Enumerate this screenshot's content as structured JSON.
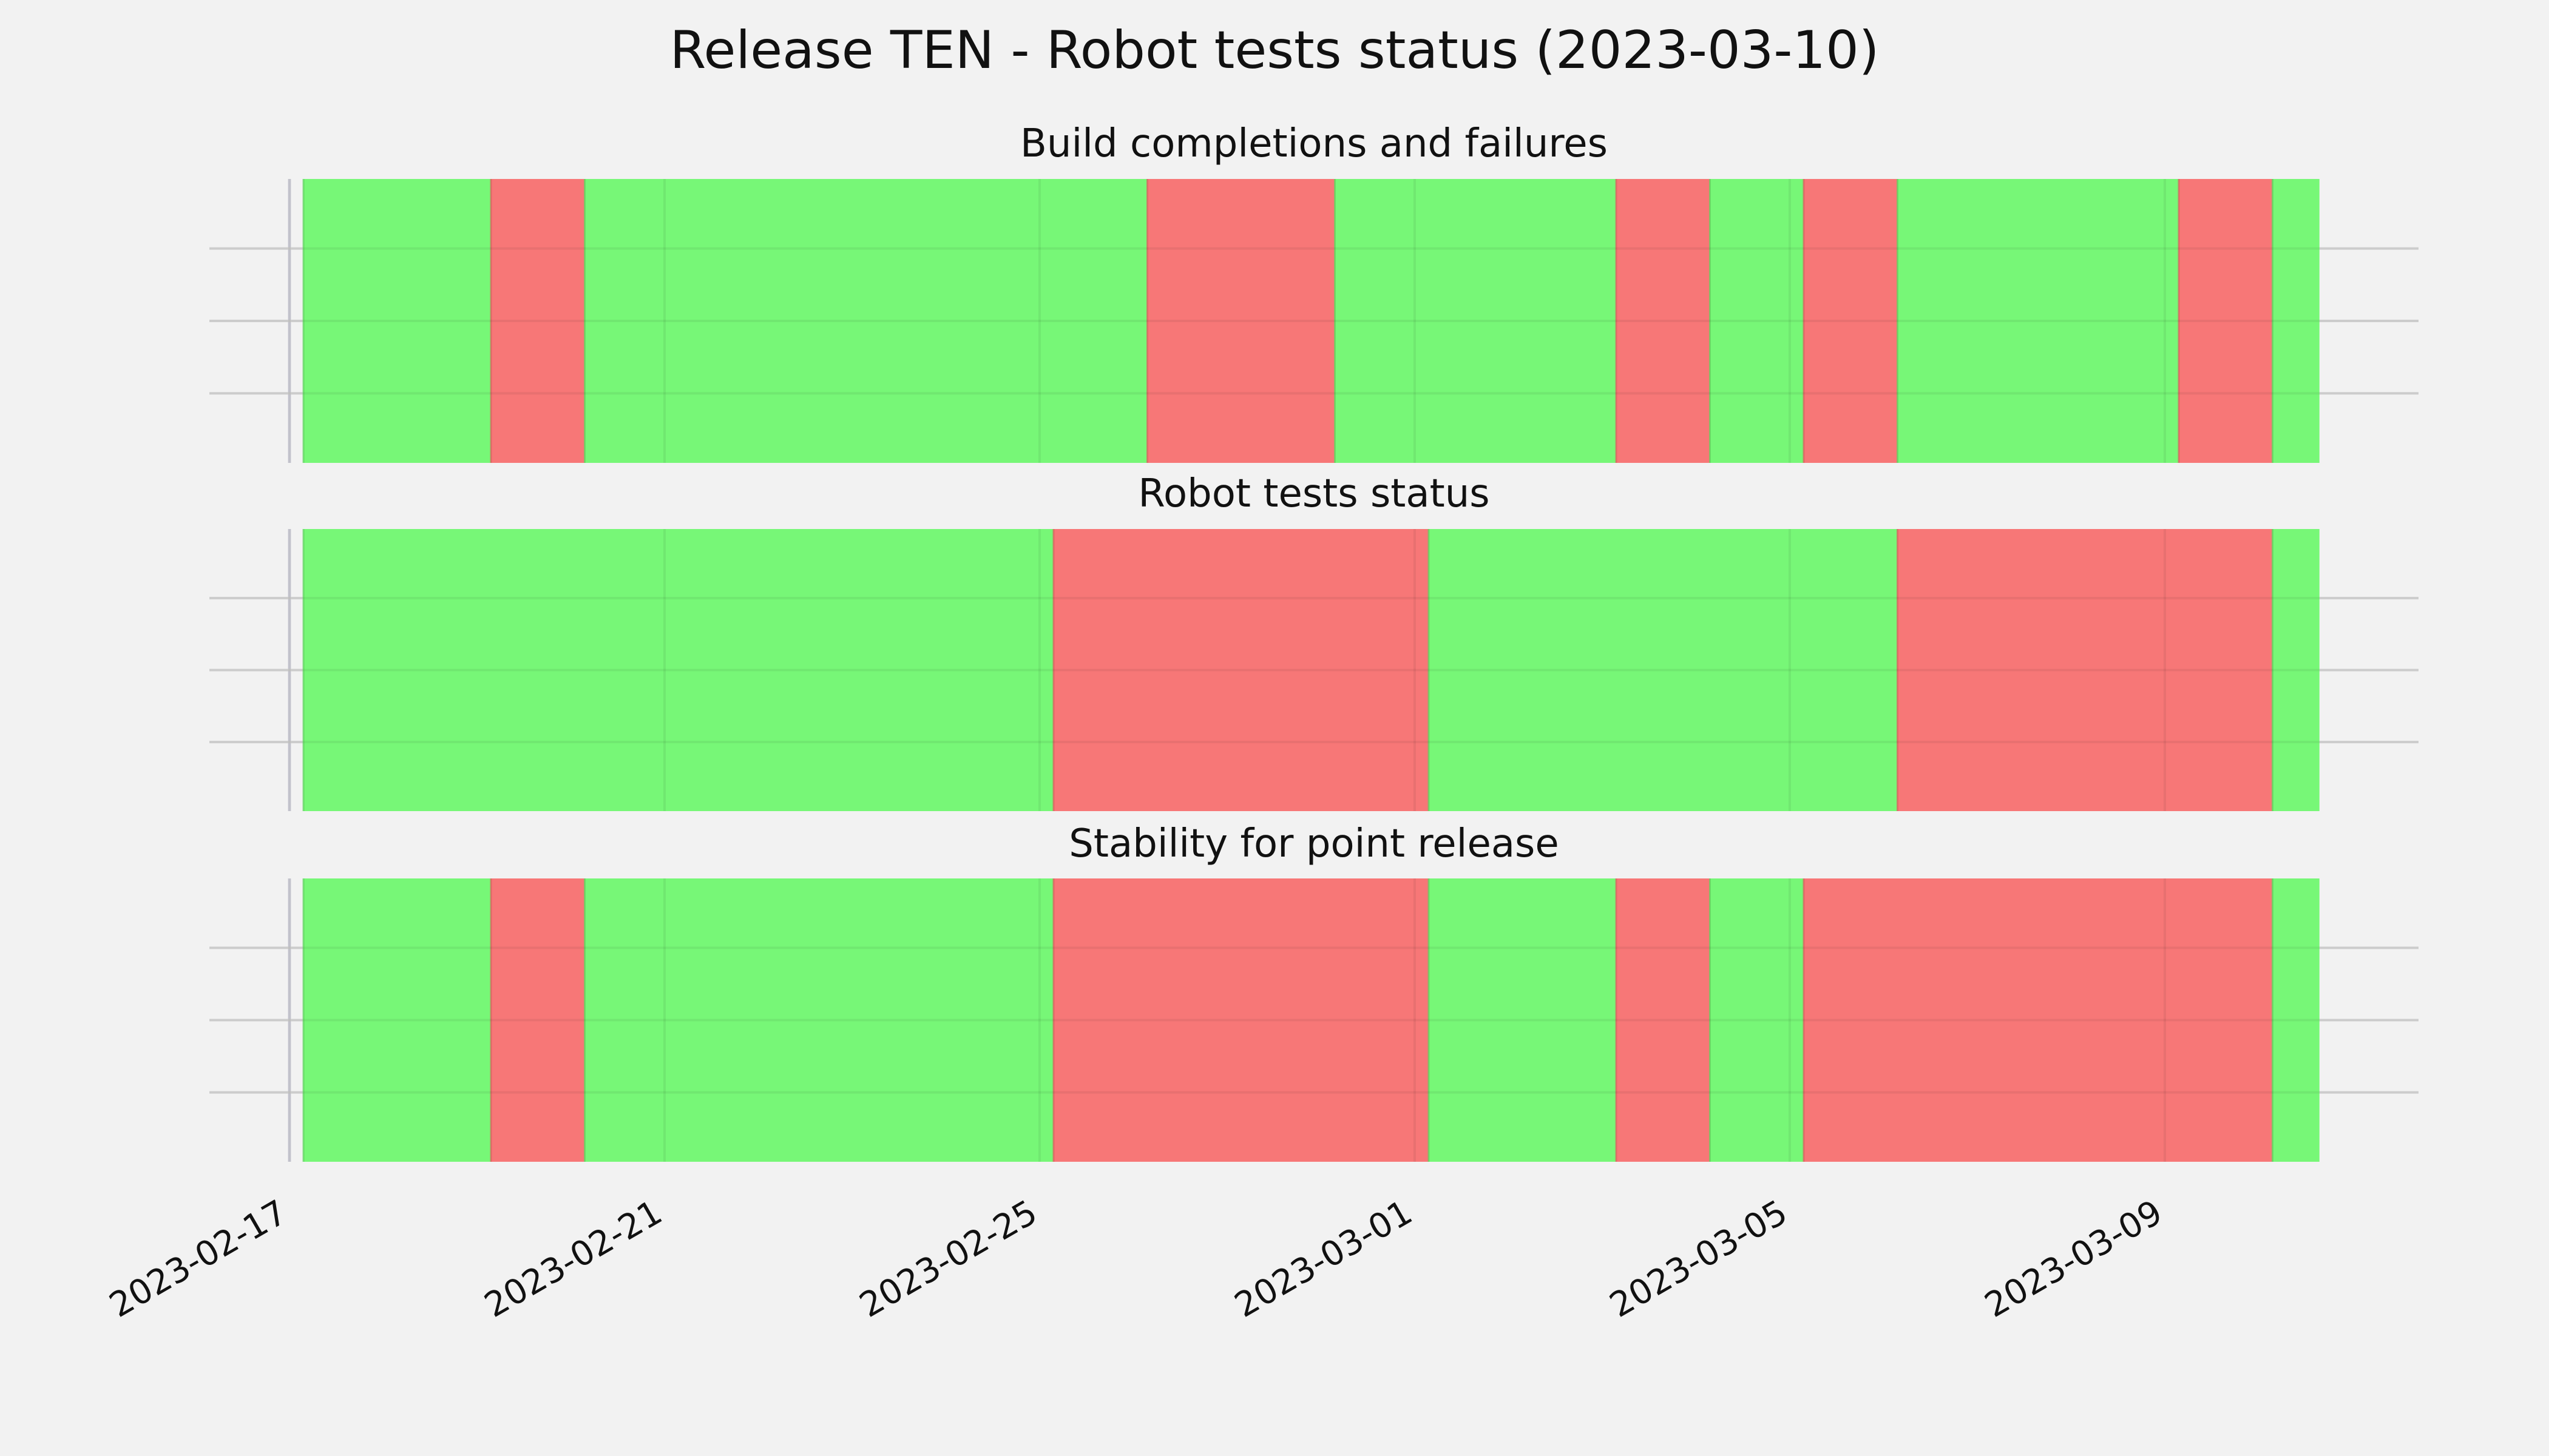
{
  "chart_data": {
    "type": "timeline",
    "title": "Release TEN - Robot tests status (2023-03-10)",
    "x_start": "2023-02-17",
    "x_range": [
      "2023-02-16T20:00",
      "2023-03-12T02:00"
    ],
    "x_ticks": [
      "2023-02-17",
      "2023-02-21",
      "2023-02-25",
      "2023-03-01",
      "2023-03-05",
      "2023-03-09"
    ],
    "grid": true,
    "colors": {
      "pass": "#77f777",
      "fail": "#f77777",
      "background": "#f2f2f2",
      "grid": "#cccccc"
    },
    "panels": [
      {
        "title": "Build completions and failures",
        "segments": [
          {
            "start": "2023-02-17",
            "end": "2023-02-19",
            "status": "pass"
          },
          {
            "start": "2023-02-19",
            "end": "2023-02-20",
            "status": "fail"
          },
          {
            "start": "2023-02-20",
            "end": "2023-02-26",
            "status": "pass"
          },
          {
            "start": "2023-02-26",
            "end": "2023-02-28",
            "status": "fail"
          },
          {
            "start": "2023-02-28",
            "end": "2023-03-03",
            "status": "pass"
          },
          {
            "start": "2023-03-03",
            "end": "2023-03-04",
            "status": "fail"
          },
          {
            "start": "2023-03-04",
            "end": "2023-03-05",
            "status": "pass"
          },
          {
            "start": "2023-03-05",
            "end": "2023-03-06",
            "status": "fail"
          },
          {
            "start": "2023-03-06",
            "end": "2023-03-09",
            "status": "pass"
          },
          {
            "start": "2023-03-09",
            "end": "2023-03-10",
            "status": "fail"
          },
          {
            "start": "2023-03-10",
            "end": "2023-03-10T12:00",
            "status": "pass"
          }
        ]
      },
      {
        "title": "Robot tests status",
        "segments": [
          {
            "start": "2023-02-17",
            "end": "2023-02-25",
            "status": "pass"
          },
          {
            "start": "2023-02-25",
            "end": "2023-03-01",
            "status": "fail"
          },
          {
            "start": "2023-03-01",
            "end": "2023-03-06",
            "status": "pass"
          },
          {
            "start": "2023-03-06",
            "end": "2023-03-10",
            "status": "fail"
          },
          {
            "start": "2023-03-10",
            "end": "2023-03-10T12:00",
            "status": "pass"
          }
        ]
      },
      {
        "title": "Stability for point release",
        "segments": [
          {
            "start": "2023-02-17",
            "end": "2023-02-19",
            "status": "pass"
          },
          {
            "start": "2023-02-19",
            "end": "2023-02-20",
            "status": "fail"
          },
          {
            "start": "2023-02-20",
            "end": "2023-02-25",
            "status": "pass"
          },
          {
            "start": "2023-02-25",
            "end": "2023-03-01",
            "status": "fail"
          },
          {
            "start": "2023-03-01",
            "end": "2023-03-03",
            "status": "pass"
          },
          {
            "start": "2023-03-03",
            "end": "2023-03-04",
            "status": "fail"
          },
          {
            "start": "2023-03-04",
            "end": "2023-03-05",
            "status": "pass"
          },
          {
            "start": "2023-03-05",
            "end": "2023-03-10",
            "status": "fail"
          },
          {
            "start": "2023-03-10",
            "end": "2023-03-10T12:00",
            "status": "pass"
          }
        ]
      }
    ]
  }
}
